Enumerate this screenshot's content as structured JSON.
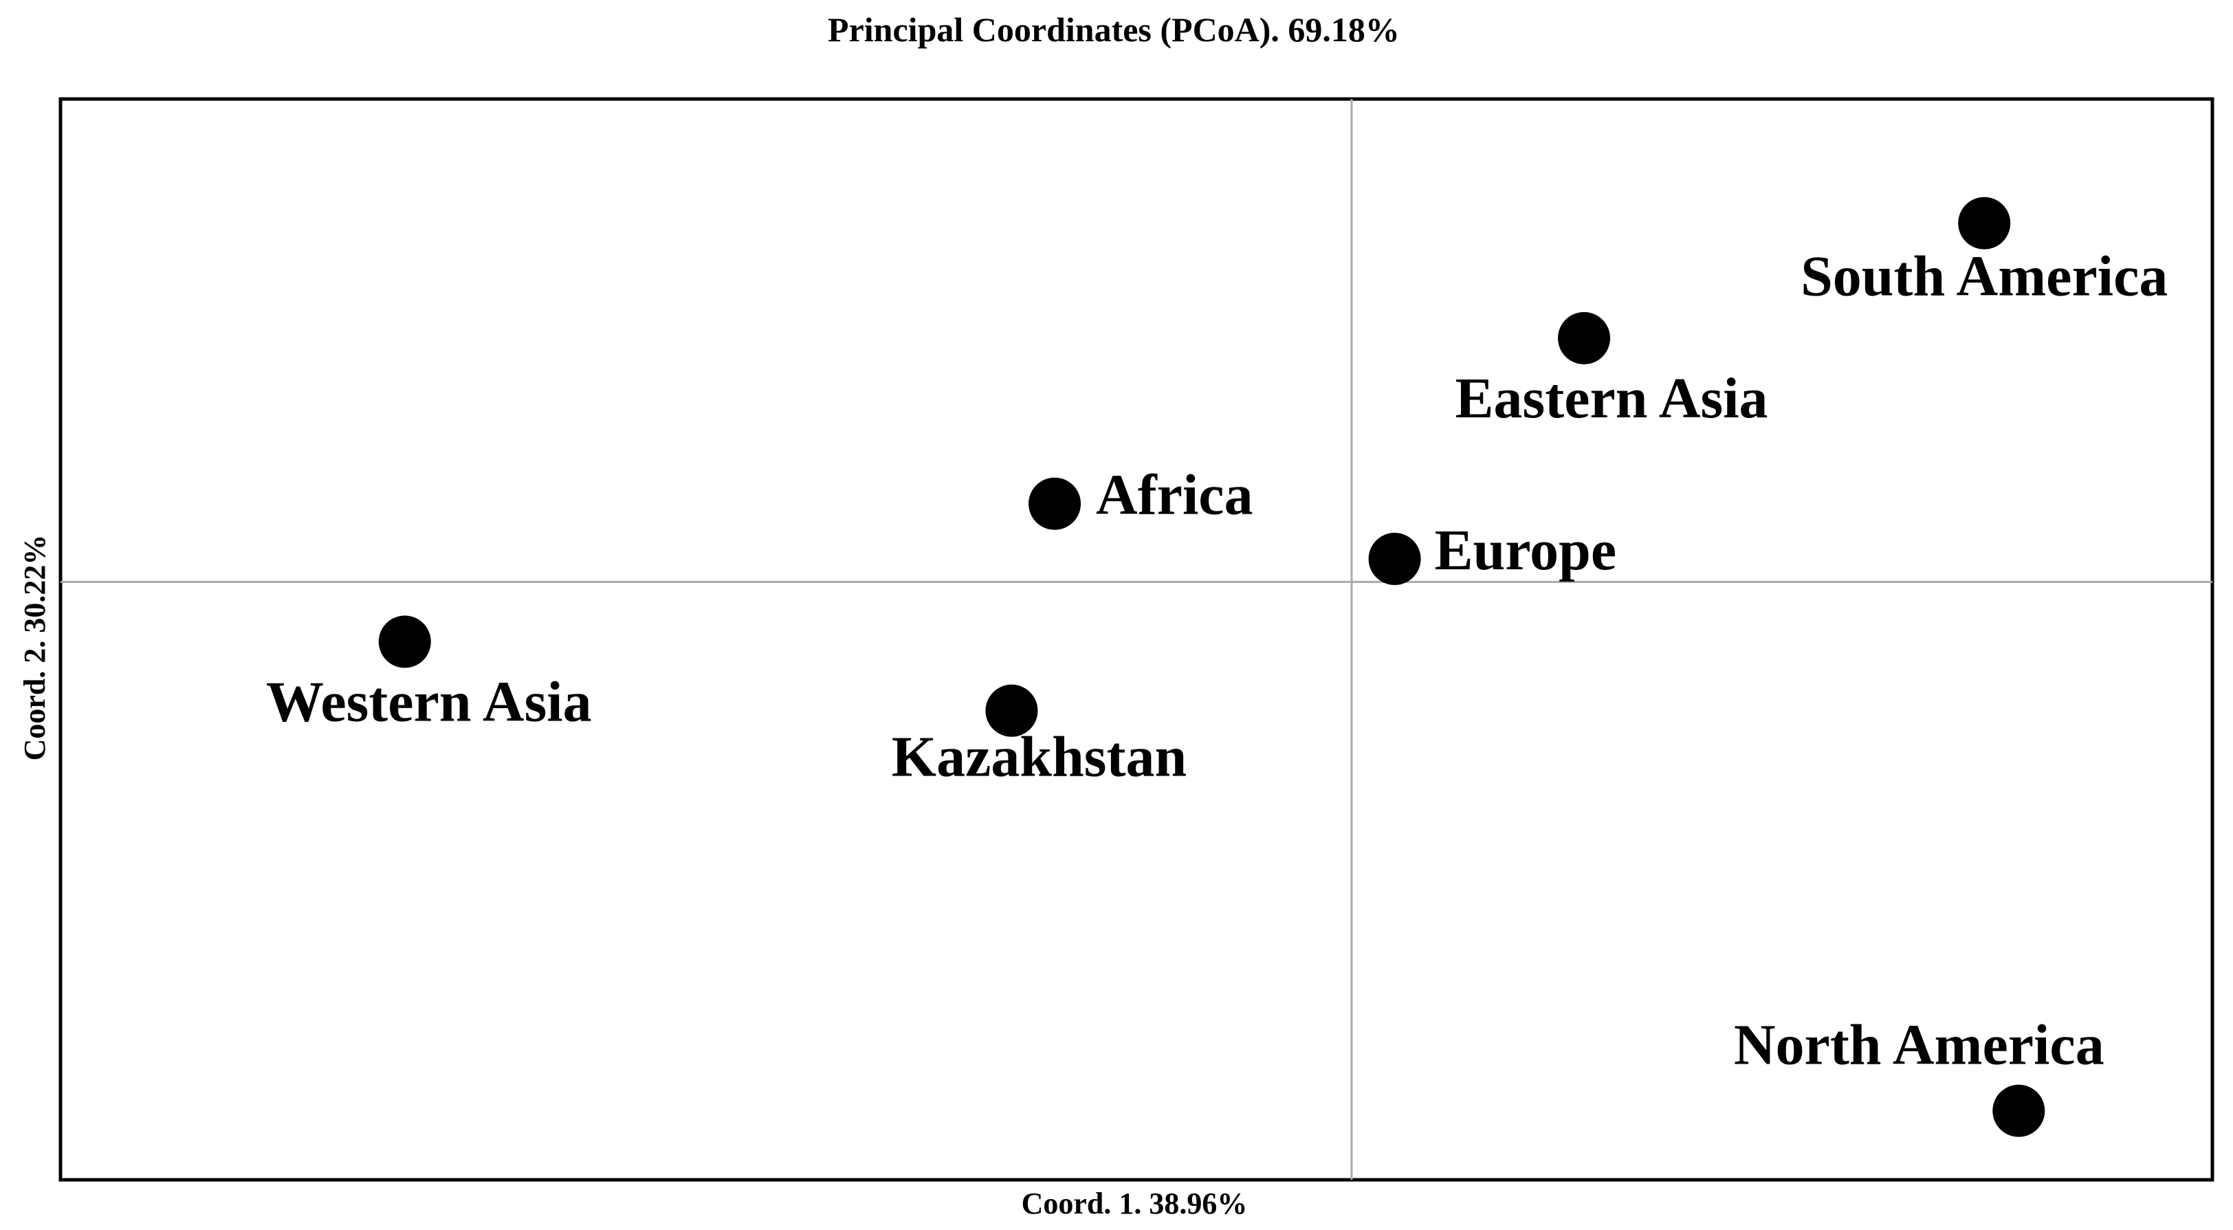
{
  "chart_data": {
    "type": "scatter",
    "title": "Principal Coordinates (PCoA). 69.18%",
    "xlabel": "Coord. 1. 38.96%",
    "ylabel": "Coord. 2. 30.22%",
    "xlim": [
      -3.0,
      2.0
    ],
    "ylim": [
      -1.3,
      1.05
    ],
    "grid": false,
    "reference_lines": {
      "x": 0,
      "y": 0
    },
    "legend": "none",
    "marker_color": "#000000",
    "points": [
      {
        "label": "South America",
        "x": 1.47,
        "y": 0.78
      },
      {
        "label": "Eastern Asia",
        "x": 0.54,
        "y": 0.53
      },
      {
        "label": "Africa",
        "x": -0.69,
        "y": 0.17
      },
      {
        "label": "Europe",
        "x": 0.1,
        "y": 0.05
      },
      {
        "label": "Western Asia",
        "x": -2.2,
        "y": -0.13
      },
      {
        "label": "Kazakhstan",
        "x": -0.79,
        "y": -0.28
      },
      {
        "label": "North America",
        "x": 1.55,
        "y": -1.15
      }
    ]
  }
}
